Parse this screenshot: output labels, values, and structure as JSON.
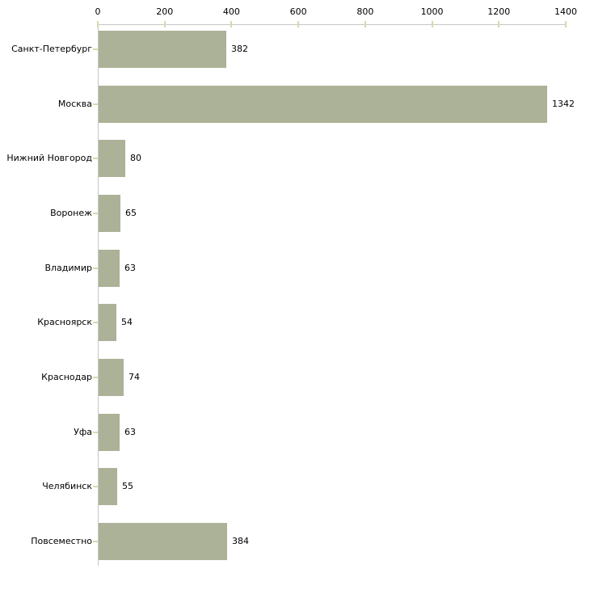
{
  "chart_data": {
    "type": "bar",
    "orientation": "horizontal",
    "title": "",
    "xlabel": "",
    "ylabel": "",
    "categories": [
      "Санкт-Петербург",
      "Москва",
      "Нижний Новгород",
      "Воронеж",
      "Владимир",
      "Красноярск",
      "Краснодар",
      "Уфа",
      "Челябинск",
      "Повсеместно"
    ],
    "values": [
      382,
      1342,
      80,
      65,
      63,
      54,
      74,
      63,
      55,
      384
    ],
    "value_labels": [
      "382",
      "1342",
      "80",
      "65",
      "63",
      "54",
      "74",
      "63",
      "55",
      "384"
    ],
    "xlim": [
      0,
      1400
    ],
    "x_ticks": [
      0,
      200,
      400,
      600,
      800,
      1000,
      1200,
      1400
    ],
    "x_tick_labels": [
      "0",
      "200",
      "400",
      "600",
      "800",
      "1000",
      "1200",
      "1400"
    ],
    "grid": false,
    "legend": null,
    "axis_position": "top",
    "colors": {
      "bar_fill": "#acb297",
      "axis_line": "#c6c6c6",
      "tick_mark": "#d6d9ae",
      "text": "#000000",
      "background": "#ffffff"
    }
  }
}
